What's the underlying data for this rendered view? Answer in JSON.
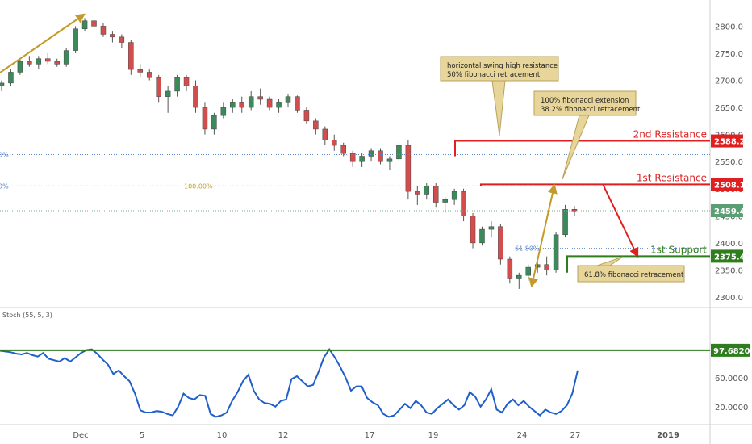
{
  "chart_data": [
    {
      "type": "candlestick",
      "series": [
        {
          "name": "price",
          "ohlc": [
            [
              2690,
              2700,
              2680,
              2695
            ],
            [
              2695,
              2720,
              2690,
              2715
            ],
            [
              2715,
              2740,
              2710,
              2735
            ],
            [
              2735,
              2745,
              2725,
              2730
            ],
            [
              2730,
              2745,
              2720,
              2740
            ],
            [
              2740,
              2750,
              2730,
              2735
            ],
            [
              2735,
              2740,
              2725,
              2730
            ],
            [
              2730,
              2760,
              2725,
              2755
            ],
            [
              2755,
              2800,
              2750,
              2795
            ],
            [
              2795,
              2815,
              2790,
              2810
            ],
            [
              2810,
              2815,
              2790,
              2800
            ],
            [
              2800,
              2805,
              2780,
              2785
            ],
            [
              2785,
              2790,
              2770,
              2780
            ],
            [
              2780,
              2785,
              2760,
              2770
            ],
            [
              2770,
              2775,
              2710,
              2720
            ],
            [
              2720,
              2730,
              2705,
              2715
            ],
            [
              2715,
              2720,
              2700,
              2705
            ],
            [
              2705,
              2710,
              2660,
              2670
            ],
            [
              2670,
              2690,
              2640,
              2680
            ],
            [
              2680,
              2710,
              2670,
              2705
            ],
            [
              2705,
              2710,
              2680,
              2690
            ],
            [
              2690,
              2700,
              2640,
              2650
            ],
            [
              2650,
              2660,
              2600,
              2610
            ],
            [
              2610,
              2640,
              2600,
              2635
            ],
            [
              2635,
              2660,
              2630,
              2650
            ],
            [
              2650,
              2665,
              2640,
              2660
            ],
            [
              2660,
              2670,
              2640,
              2650
            ],
            [
              2650,
              2680,
              2645,
              2670
            ],
            [
              2670,
              2685,
              2655,
              2665
            ],
            [
              2665,
              2670,
              2645,
              2650
            ],
            [
              2650,
              2665,
              2640,
              2660
            ],
            [
              2660,
              2675,
              2650,
              2670
            ],
            [
              2670,
              2672,
              2640,
              2645
            ],
            [
              2645,
              2650,
              2620,
              2625
            ],
            [
              2625,
              2630,
              2600,
              2610
            ],
            [
              2610,
              2615,
              2580,
              2590
            ],
            [
              2590,
              2600,
              2570,
              2580
            ],
            [
              2580,
              2585,
              2560,
              2565
            ],
            [
              2565,
              2570,
              2540,
              2550
            ],
            [
              2550,
              2565,
              2540,
              2560
            ],
            [
              2560,
              2575,
              2550,
              2570
            ],
            [
              2570,
              2575,
              2545,
              2550
            ],
            [
              2550,
              2560,
              2535,
              2555
            ],
            [
              2555,
              2585,
              2550,
              2580
            ],
            [
              2580,
              2590,
              2480,
              2495
            ],
            [
              2495,
              2505,
              2470,
              2490
            ],
            [
              2490,
              2510,
              2480,
              2505
            ],
            [
              2505,
              2510,
              2465,
              2475
            ],
            [
              2475,
              2485,
              2455,
              2480
            ],
            [
              2480,
              2500,
              2470,
              2495
            ],
            [
              2495,
              2500,
              2440,
              2450
            ],
            [
              2450,
              2455,
              2390,
              2400
            ],
            [
              2400,
              2430,
              2395,
              2425
            ],
            [
              2425,
              2440,
              2410,
              2430
            ],
            [
              2430,
              2435,
              2360,
              2370
            ],
            [
              2370,
              2375,
              2325,
              2335
            ],
            [
              2335,
              2345,
              2315,
              2340
            ],
            [
              2340,
              2360,
              2330,
              2355
            ],
            [
              2355,
              2370,
              2345,
              2360
            ],
            [
              2360,
              2375,
              2340,
              2350
            ],
            [
              2350,
              2420,
              2345,
              2415
            ],
            [
              2415,
              2470,
              2410,
              2462
            ],
            [
              2462,
              2468,
              2450,
              2459
            ]
          ]
        }
      ],
      "ylim": [
        2290,
        2830
      ],
      "yticks": [
        "2300.0",
        "2350.0",
        "2400.0",
        "2450.0",
        "2500.0",
        "2550.0",
        "2600.0",
        "2650.0",
        "2700.0",
        "2750.0",
        "2800.0"
      ],
      "levels": [
        {
          "name": "2nd Resistance",
          "value": 2588.2,
          "label": "2588.2",
          "color": "#e02020"
        },
        {
          "name": "1st Resistance",
          "value": 2508.1,
          "label": "2508.1",
          "color": "#e02020"
        },
        {
          "name": "1st Support",
          "value": 2375.4,
          "label": "2375.4",
          "color": "#2e7d1e"
        }
      ],
      "current_price": {
        "value": 2459.4,
        "label": "2459.4",
        "color": "#5a9e73"
      },
      "fib_labels": {
        "fib_100": "100.00%",
        "fib_618": "61.80%",
        "left_a": "0%",
        "left_b": "0%"
      },
      "annotations": [
        {
          "line1": "horizontal swing high resistance",
          "line2": "50% fibonacci retracement"
        },
        {
          "line1": "100% fibonacci extension",
          "line2": "38.2% fibonacci retracement"
        },
        {
          "line1": "61.8% fibonacci retracement",
          "line2": ""
        }
      ]
    },
    {
      "type": "line",
      "title": "Stoch (55, 5, 3)",
      "series": [
        {
          "name": "Stoch",
          "color": "#1f5fc9",
          "values": [
            97,
            96,
            95,
            93,
            92,
            94,
            91,
            89,
            94,
            86,
            84,
            82,
            87,
            82,
            88,
            94,
            98,
            99,
            93,
            85,
            78,
            65,
            70,
            62,
            55,
            38,
            15,
            12,
            12,
            14,
            13,
            10,
            8,
            20,
            38,
            32,
            30,
            36,
            35,
            10,
            6,
            8,
            12,
            28,
            40,
            55,
            64,
            42,
            30,
            25,
            24,
            20,
            28,
            30,
            58,
            62,
            55,
            48,
            50,
            68,
            88,
            99,
            88,
            75,
            60,
            42,
            48,
            48,
            32,
            26,
            22,
            10,
            6,
            8,
            16,
            24,
            18,
            28,
            22,
            12,
            10,
            18,
            24,
            30,
            22,
            16,
            22,
            40,
            34,
            20,
            30,
            44,
            16,
            12,
            24,
            30,
            22,
            28,
            20,
            14,
            8,
            16,
            12,
            10,
            14,
            22,
            38,
            70
          ]
        }
      ],
      "ylim": [
        2,
        105
      ],
      "yticks": [
        "20.0000",
        "60.0000"
      ],
      "level": {
        "value": 97.682,
        "label": "97.6820",
        "color": "#2e7d1e"
      }
    }
  ],
  "xaxis": {
    "labels": [
      "Dec",
      "5",
      "10",
      "12",
      "17",
      "19",
      "24",
      "27",
      "2019"
    ]
  }
}
